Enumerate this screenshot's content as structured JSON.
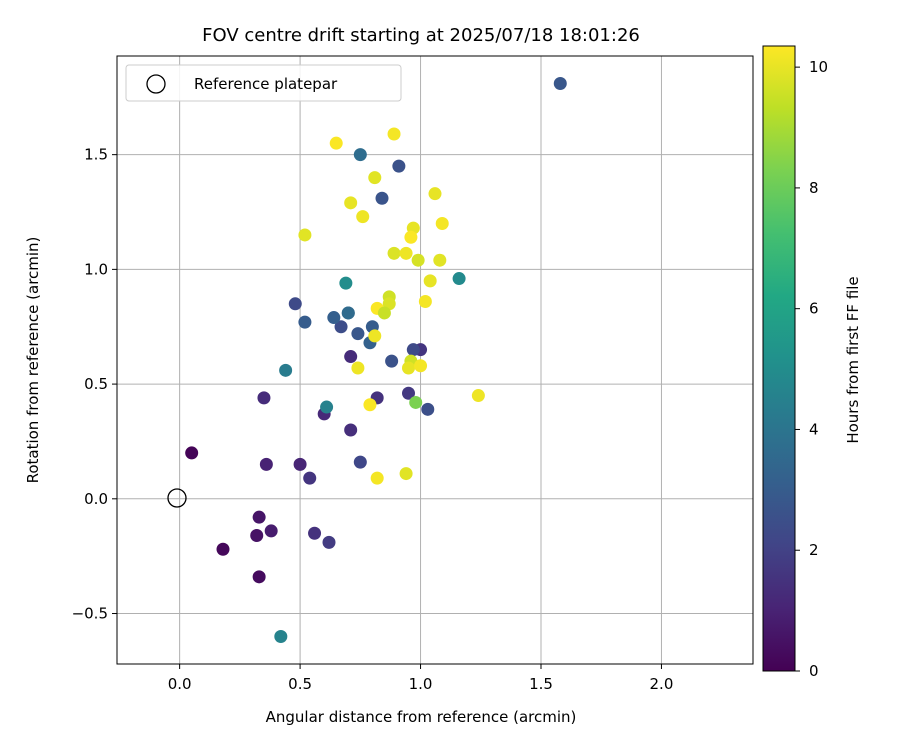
{
  "chart_data": {
    "type": "scatter",
    "title": "FOV centre drift starting at 2025/07/18 18:01:26",
    "xlabel": "Angular distance from reference (arcmin)",
    "ylabel": "Rotation from reference (arcmin)",
    "xlim": [
      -0.26,
      2.38
    ],
    "ylim": [
      -0.72,
      1.93
    ],
    "xticks": [
      0.0,
      0.5,
      1.0,
      1.5,
      2.0
    ],
    "xtick_labels": [
      "0.0",
      "0.5",
      "1.0",
      "1.5",
      "2.0"
    ],
    "yticks": [
      -0.5,
      0.0,
      0.5,
      1.0,
      1.5
    ],
    "ytick_labels": [
      "−0.5",
      "0.0",
      "0.5",
      "1.0",
      "1.5"
    ],
    "grid": true,
    "legend": {
      "position": "top-left",
      "entries": [
        "Reference platepar"
      ]
    },
    "reference_point": {
      "x": 0.0,
      "y": 0.0
    },
    "colorbar": {
      "label": "Hours from first FF file",
      "colormap": "viridis",
      "range": [
        0,
        10.35
      ],
      "ticks": [
        0,
        2,
        4,
        6,
        8,
        10
      ],
      "tick_labels": [
        "0",
        "2",
        "4",
        "6",
        "8",
        "10"
      ]
    },
    "points": [
      {
        "x": 0.05,
        "y": 0.2,
        "t": 0.1
      },
      {
        "x": 0.18,
        "y": -0.22,
        "t": 0.2
      },
      {
        "x": 0.33,
        "y": -0.34,
        "t": 0.3
      },
      {
        "x": 0.32,
        "y": -0.16,
        "t": 0.5
      },
      {
        "x": 0.33,
        "y": -0.08,
        "t": 0.6
      },
      {
        "x": 0.38,
        "y": -0.14,
        "t": 0.8
      },
      {
        "x": 0.36,
        "y": 0.15,
        "t": 1.0
      },
      {
        "x": 0.5,
        "y": 0.15,
        "t": 1.1
      },
      {
        "x": 0.35,
        "y": 0.44,
        "t": 1.3
      },
      {
        "x": 0.56,
        "y": -0.15,
        "t": 1.5
      },
      {
        "x": 0.62,
        "y": -0.19,
        "t": 1.8
      },
      {
        "x": 0.54,
        "y": 0.09,
        "t": 1.6
      },
      {
        "x": 0.6,
        "y": 0.37,
        "t": 1.2
      },
      {
        "x": 0.71,
        "y": 0.3,
        "t": 1.4
      },
      {
        "x": 0.71,
        "y": 0.62,
        "t": 1.3
      },
      {
        "x": 0.75,
        "y": 0.16,
        "t": 2.2
      },
      {
        "x": 0.82,
        "y": 0.44,
        "t": 1.5
      },
      {
        "x": 0.95,
        "y": 0.46,
        "t": 1.7
      },
      {
        "x": 1.0,
        "y": 0.65,
        "t": 1.6
      },
      {
        "x": 1.03,
        "y": 0.39,
        "t": 2.5
      },
      {
        "x": 0.97,
        "y": 0.65,
        "t": 2.3
      },
      {
        "x": 0.88,
        "y": 0.6,
        "t": 2.6
      },
      {
        "x": 0.74,
        "y": 0.72,
        "t": 2.8
      },
      {
        "x": 0.67,
        "y": 0.75,
        "t": 2.4
      },
      {
        "x": 0.79,
        "y": 0.68,
        "t": 3.2
      },
      {
        "x": 0.8,
        "y": 0.75,
        "t": 3.0
      },
      {
        "x": 0.64,
        "y": 0.79,
        "t": 3.1
      },
      {
        "x": 0.7,
        "y": 0.81,
        "t": 3.3
      },
      {
        "x": 0.52,
        "y": 0.77,
        "t": 3.0
      },
      {
        "x": 0.48,
        "y": 0.85,
        "t": 2.3
      },
      {
        "x": 0.7,
        "y": 0.81,
        "t": 3.6
      },
      {
        "x": 0.69,
        "y": 0.94,
        "t": 5.0
      },
      {
        "x": 0.44,
        "y": 0.56,
        "t": 4.3
      },
      {
        "x": 0.61,
        "y": 0.4,
        "t": 4.5
      },
      {
        "x": 0.42,
        "y": -0.6,
        "t": 4.6
      },
      {
        "x": 0.75,
        "y": 1.5,
        "t": 3.7
      },
      {
        "x": 0.91,
        "y": 1.45,
        "t": 2.6
      },
      {
        "x": 0.84,
        "y": 1.31,
        "t": 2.7
      },
      {
        "x": 1.58,
        "y": 1.81,
        "t": 2.8
      },
      {
        "x": 1.16,
        "y": 0.96,
        "t": 4.9
      },
      {
        "x": 0.98,
        "y": 0.42,
        "t": 8.3
      },
      {
        "x": 0.65,
        "y": 1.55,
        "t": 10.3
      },
      {
        "x": 0.89,
        "y": 1.59,
        "t": 10.2
      },
      {
        "x": 0.81,
        "y": 1.4,
        "t": 9.9
      },
      {
        "x": 0.71,
        "y": 1.29,
        "t": 10.0
      },
      {
        "x": 0.76,
        "y": 1.23,
        "t": 10.1
      },
      {
        "x": 1.06,
        "y": 1.33,
        "t": 10.0
      },
      {
        "x": 1.09,
        "y": 1.2,
        "t": 10.2
      },
      {
        "x": 0.52,
        "y": 1.15,
        "t": 9.9
      },
      {
        "x": 0.97,
        "y": 1.18,
        "t": 10.0
      },
      {
        "x": 0.96,
        "y": 1.14,
        "t": 10.3
      },
      {
        "x": 0.89,
        "y": 1.07,
        "t": 9.8
      },
      {
        "x": 0.94,
        "y": 1.07,
        "t": 10.1
      },
      {
        "x": 0.99,
        "y": 1.04,
        "t": 9.7
      },
      {
        "x": 1.08,
        "y": 1.04,
        "t": 9.9
      },
      {
        "x": 1.04,
        "y": 0.95,
        "t": 10.0
      },
      {
        "x": 0.87,
        "y": 0.88,
        "t": 9.6
      },
      {
        "x": 0.87,
        "y": 0.85,
        "t": 9.8
      },
      {
        "x": 1.02,
        "y": 0.86,
        "t": 10.2
      },
      {
        "x": 0.82,
        "y": 0.83,
        "t": 10.3
      },
      {
        "x": 0.85,
        "y": 0.81,
        "t": 9.5
      },
      {
        "x": 0.81,
        "y": 0.71,
        "t": 10.1
      },
      {
        "x": 0.96,
        "y": 0.6,
        "t": 9.6
      },
      {
        "x": 0.95,
        "y": 0.57,
        "t": 10.0
      },
      {
        "x": 1.0,
        "y": 0.58,
        "t": 10.2
      },
      {
        "x": 0.74,
        "y": 0.57,
        "t": 10.1
      },
      {
        "x": 0.79,
        "y": 0.41,
        "t": 10.3
      },
      {
        "x": 1.24,
        "y": 0.45,
        "t": 10.1
      },
      {
        "x": 0.94,
        "y": 0.11,
        "t": 9.9
      },
      {
        "x": 0.82,
        "y": 0.09,
        "t": 10.2
      }
    ]
  }
}
